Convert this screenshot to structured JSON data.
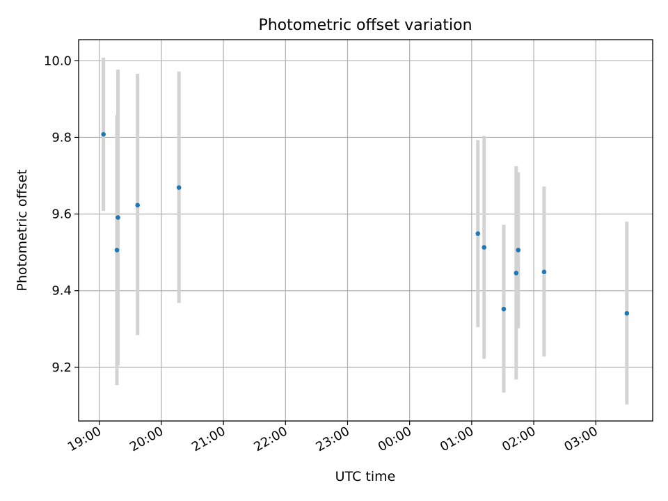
{
  "chart_data": {
    "type": "scatter",
    "title": "Photometric offset variation",
    "xlabel": "UTC time",
    "ylabel": "Photometric offset",
    "grid": true,
    "x_axis": {
      "kind": "time",
      "range": [
        "18:40",
        "03:55"
      ],
      "ticks": [
        "19:00",
        "20:00",
        "21:00",
        "22:00",
        "23:00",
        "00:00",
        "01:00",
        "02:00",
        "03:00"
      ]
    },
    "y_axis": {
      "range": [
        9.06,
        10.055
      ],
      "ticks": [
        {
          "value": 9.2,
          "label": "9.2"
        },
        {
          "value": 9.4,
          "label": "9.4"
        },
        {
          "value": 9.6,
          "label": "9.6"
        },
        {
          "value": 9.8,
          "label": "9.8"
        },
        {
          "value": 10.0,
          "label": "10.0"
        }
      ]
    },
    "colors": {
      "point": "#1f77b4",
      "errorbar": "#d3d3d3",
      "grid": "#b0b0b0"
    },
    "points": [
      {
        "time": "19:04",
        "y": 9.808,
        "ylo": 9.608,
        "yhi": 10.008
      },
      {
        "time": "19:17",
        "y": 9.506,
        "ylo": 9.154,
        "yhi": 9.858
      },
      {
        "time": "19:18",
        "y": 9.591,
        "ylo": 9.205,
        "yhi": 9.977
      },
      {
        "time": "19:37",
        "y": 9.623,
        "ylo": 9.284,
        "yhi": 9.966
      },
      {
        "time": "20:17",
        "y": 9.669,
        "ylo": 9.368,
        "yhi": 9.972
      },
      {
        "time": "01:06",
        "y": 9.549,
        "ylo": 9.305,
        "yhi": 9.793
      },
      {
        "time": "01:12",
        "y": 9.513,
        "ylo": 9.222,
        "yhi": 9.804
      },
      {
        "time": "01:31",
        "y": 9.352,
        "ylo": 9.134,
        "yhi": 9.572
      },
      {
        "time": "01:43",
        "y": 9.446,
        "ylo": 9.168,
        "yhi": 9.725
      },
      {
        "time": "01:45",
        "y": 9.506,
        "ylo": 9.302,
        "yhi": 9.709
      },
      {
        "time": "02:10",
        "y": 9.449,
        "ylo": 9.228,
        "yhi": 9.672
      },
      {
        "time": "03:30",
        "y": 9.341,
        "ylo": 9.103,
        "yhi": 9.58
      }
    ]
  }
}
